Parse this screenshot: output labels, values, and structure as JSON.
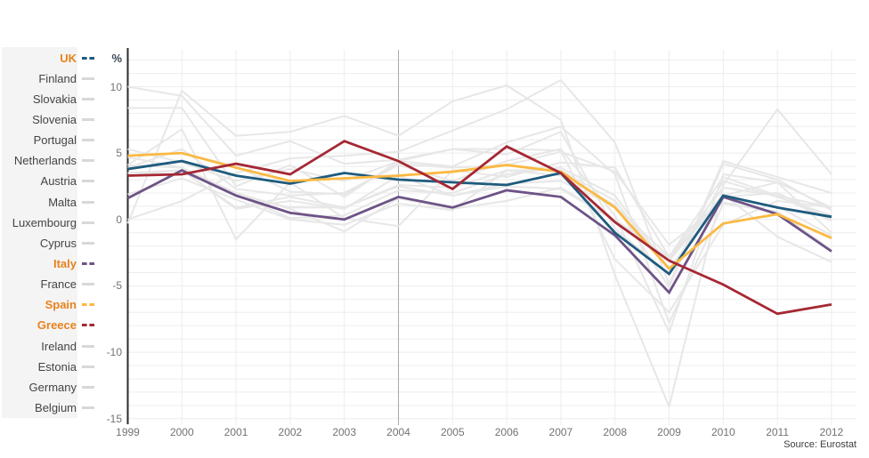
{
  "colors": {
    "accent_orange": "#e8821d",
    "muted_line": "#e7e7e7",
    "muted_swatch": "#d8d8d8",
    "grid": "#ededed",
    "reference_line": "#a9a9a9",
    "axis": "#2b2b2b",
    "tick_text": "#737373",
    "legend_text": "#444444",
    "unit_text": "#3b4754",
    "source_text": "#3c3c3c",
    "panel_bg": "#f4f4f4"
  },
  "chart_data": {
    "type": "line",
    "title": "",
    "ylabel": "%",
    "xlabel": "",
    "source": "Source: Eurostat",
    "grid": true,
    "legend_position": "left",
    "x": [
      1999,
      2000,
      2001,
      2002,
      2003,
      2004,
      2005,
      2006,
      2007,
      2008,
      2009,
      2010,
      2011,
      2012
    ],
    "y_ticks": [
      10,
      5,
      0,
      -5,
      -10,
      -15
    ],
    "ylim": [
      -15.4,
      12.9
    ],
    "xlim": [
      1999,
      2012
    ],
    "reference_line_x": 2004,
    "highlighted": [
      "UK",
      "Italy",
      "Spain",
      "Greece"
    ],
    "series": [
      {
        "name": "UK",
        "highlighted": true,
        "z": 2,
        "color": "#1e5b7e",
        "values": [
          3.8,
          4.4,
          3.3,
          2.7,
          3.5,
          3.0,
          2.8,
          2.6,
          3.5,
          -1.0,
          -4.1,
          1.8,
          0.9,
          0.2
        ]
      },
      {
        "name": "Finland",
        "highlighted": false,
        "z": 0,
        "color": "#e7e7e7",
        "values": [
          3.9,
          5.3,
          2.3,
          1.8,
          2.0,
          4.1,
          2.9,
          4.4,
          5.3,
          0.3,
          -8.5,
          3.4,
          2.8,
          -1.0
        ]
      },
      {
        "name": "Slovakia",
        "highlighted": false,
        "z": 0,
        "color": "#e7e7e7",
        "values": [
          0.0,
          1.4,
          3.5,
          4.6,
          4.8,
          5.1,
          6.7,
          8.3,
          10.5,
          5.8,
          -4.9,
          4.4,
          3.2,
          2.0
        ]
      },
      {
        "name": "Slovenia",
        "highlighted": false,
        "z": 0,
        "color": "#e7e7e7",
        "values": [
          5.3,
          4.3,
          2.9,
          3.8,
          2.9,
          4.4,
          4.0,
          5.8,
          7.0,
          3.4,
          -7.8,
          1.2,
          0.6,
          -2.3
        ]
      },
      {
        "name": "Portugal",
        "highlighted": false,
        "z": 0,
        "color": "#e7e7e7",
        "values": [
          4.1,
          3.9,
          2.0,
          0.8,
          -0.9,
          1.6,
          0.8,
          1.4,
          2.4,
          0.0,
          -2.9,
          1.9,
          -1.3,
          -3.2
        ]
      },
      {
        "name": "Netherlands",
        "highlighted": false,
        "z": 0,
        "color": "#e7e7e7",
        "values": [
          4.7,
          3.9,
          1.9,
          0.1,
          0.3,
          2.2,
          2.0,
          3.4,
          3.9,
          1.8,
          -3.7,
          1.6,
          1.0,
          -1.2
        ]
      },
      {
        "name": "Austria",
        "highlighted": false,
        "z": 0,
        "color": "#e7e7e7",
        "values": [
          3.5,
          3.7,
          0.9,
          1.7,
          0.9,
          2.6,
          2.4,
          3.7,
          3.7,
          1.4,
          -3.8,
          1.8,
          2.8,
          0.9
        ]
      },
      {
        "name": "Malta",
        "highlighted": false,
        "z": 0,
        "color": "#e7e7e7",
        "values": [
          4.1,
          6.8,
          -1.5,
          2.8,
          0.1,
          -0.5,
          3.7,
          3.2,
          4.3,
          3.9,
          -2.8,
          3.2,
          1.8,
          0.9
        ]
      },
      {
        "name": "Luxembourg",
        "highlighted": false,
        "z": 0,
        "color": "#e7e7e7",
        "values": [
          8.4,
          8.4,
          2.5,
          4.1,
          1.7,
          4.4,
          5.3,
          4.9,
          6.6,
          -0.7,
          -4.1,
          2.9,
          1.7,
          0.3
        ]
      },
      {
        "name": "Cyprus",
        "highlighted": false,
        "z": 0,
        "color": "#e7e7e7",
        "values": [
          4.8,
          5.0,
          4.0,
          2.1,
          1.9,
          4.2,
          3.9,
          4.1,
          5.1,
          3.6,
          -1.9,
          1.3,
          0.5,
          -2.4
        ]
      },
      {
        "name": "Italy",
        "highlighted": true,
        "z": 1,
        "color": "#6d5386",
        "values": [
          1.6,
          3.7,
          1.8,
          0.5,
          0.0,
          1.7,
          0.9,
          2.2,
          1.7,
          -1.2,
          -5.5,
          1.7,
          0.4,
          -2.4
        ]
      },
      {
        "name": "France",
        "highlighted": false,
        "z": 0,
        "color": "#e7e7e7",
        "values": [
          3.3,
          3.7,
          1.8,
          0.9,
          0.9,
          2.5,
          1.8,
          2.5,
          2.3,
          -0.1,
          -3.1,
          1.7,
          2.0,
          0.0
        ]
      },
      {
        "name": "Spain",
        "highlighted": true,
        "z": 3,
        "color": "#fbb942",
        "values": [
          4.8,
          5.0,
          3.9,
          2.9,
          3.1,
          3.3,
          3.6,
          4.1,
          3.6,
          0.9,
          -3.7,
          -0.3,
          0.4,
          -1.4
        ]
      },
      {
        "name": "Greece",
        "highlighted": true,
        "z": 4,
        "color": "#a52834",
        "values": [
          3.3,
          3.4,
          4.2,
          3.4,
          5.9,
          4.4,
          2.3,
          5.5,
          3.5,
          -0.2,
          -3.1,
          -4.9,
          -7.1,
          -6.4
        ]
      },
      {
        "name": "Ireland",
        "highlighted": false,
        "z": 0,
        "color": "#e7e7e7",
        "values": [
          10.0,
          9.3,
          4.8,
          5.9,
          4.2,
          4.5,
          5.3,
          5.3,
          5.2,
          -3.0,
          -7.0,
          -0.4,
          1.4,
          0.9
        ]
      },
      {
        "name": "Estonia",
        "highlighted": false,
        "z": 0,
        "color": "#e7e7e7",
        "values": [
          -0.3,
          9.7,
          6.3,
          6.6,
          7.8,
          6.3,
          8.9,
          10.1,
          7.5,
          -4.2,
          -14.1,
          2.6,
          8.3,
          3.4
        ]
      },
      {
        "name": "Germany",
        "highlighted": false,
        "z": 0,
        "color": "#e7e7e7",
        "values": [
          1.9,
          3.1,
          1.5,
          0.0,
          -0.4,
          1.2,
          0.7,
          3.7,
          3.3,
          1.1,
          -5.1,
          4.2,
          3.0,
          0.7
        ]
      },
      {
        "name": "Belgium",
        "highlighted": false,
        "z": 0,
        "color": "#e7e7e7",
        "values": [
          3.5,
          3.7,
          0.8,
          1.4,
          0.8,
          3.3,
          1.8,
          2.7,
          2.9,
          1.0,
          -2.8,
          2.4,
          1.8,
          -0.1
        ]
      }
    ]
  }
}
